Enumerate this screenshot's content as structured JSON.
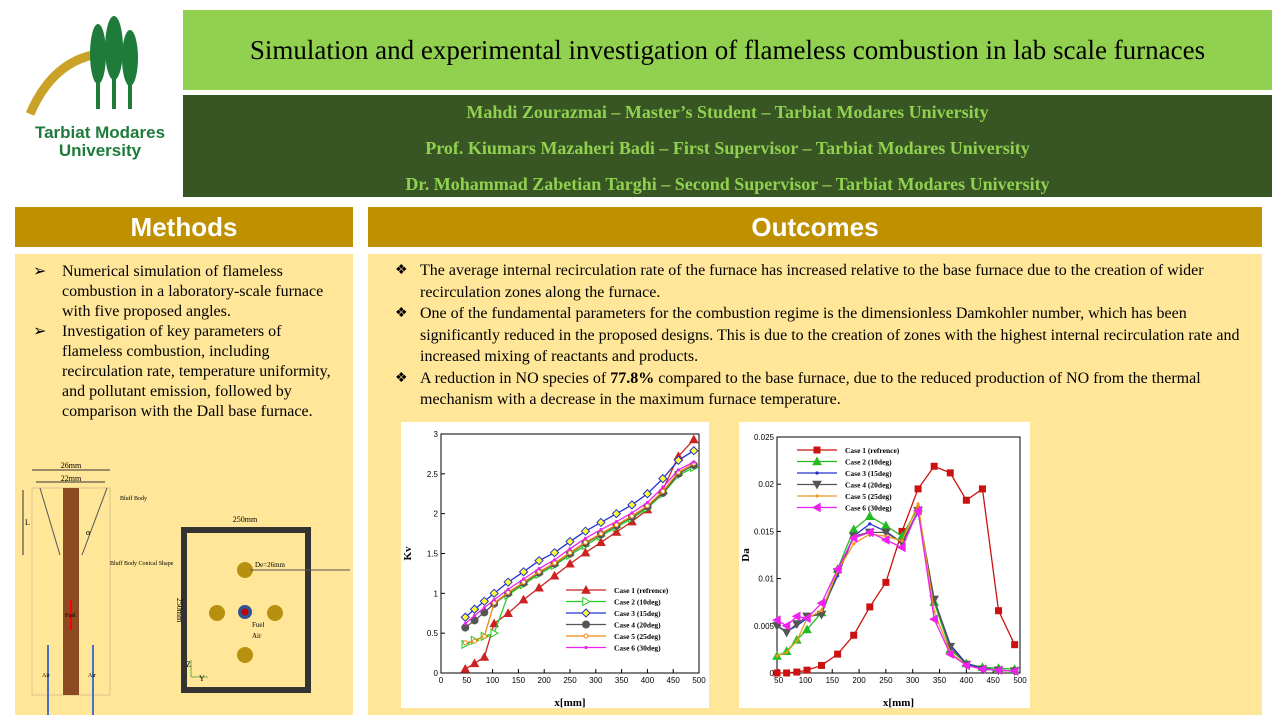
{
  "logo": {
    "text_line1": "Tarbiat Modares",
    "text_line2": "University",
    "colors": {
      "gold": "#C9A227",
      "green": "#1E7B3A"
    }
  },
  "title": "Simulation and experimental investigation of flameless combustion in lab scale furnaces",
  "authors": [
    "Mahdi Zourazmai – Master’s Student – Tarbiat Modares University",
    "Prof. Kiumars Mazaheri Badi – First Supervisor – Tarbiat Modares University",
    "Dr. Mohammad Zabetian Targhi – Second Supervisor – Tarbiat Modares University"
  ],
  "methods": {
    "heading": "Methods",
    "items": [
      "Numerical simulation of flameless combustion in a laboratory-scale furnace with five proposed angles.",
      "Investigation of key parameters of flameless combustion, including recirculation rate, temperature uniformity, and pollutant emission, followed by comparison with the Dall base furnace."
    ]
  },
  "diagram": {
    "dim_outer": "26mm",
    "dim_inner": "22mm",
    "label_L": "L",
    "label_alpha": "α",
    "bluff_body": "Bluff Body",
    "bluff_conical": "Bluff Body Conical Shape",
    "fuel": "Fuel",
    "air": "Air",
    "box_width": "250mm",
    "box_height": "250mm",
    "de": "De=26mm",
    "fuel_label": "Fuel",
    "air_label": "Air",
    "axis_z": "Z",
    "axis_y": "Y"
  },
  "outcomes": {
    "heading": "Outcomes",
    "items": [
      {
        "text": "The average internal recirculation rate of the furnace has increased relative to the base furnace due to the creation of wider recirculation zones along the furnace."
      },
      {
        "text": "One of the fundamental parameters for the combustion regime is the dimensionless Damkohler number, which has been significantly reduced in the proposed designs. This is due to the creation of zones with the highest internal recirculation rate and increased mixing of reactants and products."
      },
      {
        "pre": "A reduction in NO species of ",
        "bold": "77.8%",
        "post": " compared to the base furnace, due to the reduced production of NO from the thermal mechanism with a decrease in the maximum furnace temperature."
      }
    ]
  },
  "chart_data": [
    {
      "type": "line",
      "xlabel": "x[mm]",
      "ylabel": "Kv",
      "xlim": [
        0,
        500
      ],
      "ylim": [
        0,
        3
      ],
      "xticks": [
        0,
        50,
        100,
        150,
        200,
        250,
        300,
        350,
        400,
        450,
        500
      ],
      "yticks": [
        0,
        0.5,
        1,
        1.5,
        2,
        2.5,
        3
      ],
      "legend": "bottom-right",
      "x": [
        47,
        65,
        84,
        103,
        130,
        160,
        190,
        220,
        250,
        280,
        310,
        340,
        370,
        400,
        430,
        460,
        490
      ],
      "series": [
        {
          "name": "Case 1 (refrence)",
          "color": "#CC2222",
          "marker": "triangle",
          "values": [
            0.05,
            0.12,
            0.2,
            0.62,
            0.75,
            0.92,
            1.07,
            1.22,
            1.37,
            1.51,
            1.64,
            1.77,
            1.9,
            2.05,
            2.3,
            2.72,
            2.93
          ]
        },
        {
          "name": "Case 2 (10deg)",
          "color": "#22CC22",
          "marker": "triangle-right",
          "values": [
            0.36,
            0.41,
            0.46,
            0.5,
            0.98,
            1.11,
            1.24,
            1.35,
            1.48,
            1.6,
            1.72,
            1.83,
            1.94,
            2.07,
            2.25,
            2.48,
            2.58
          ]
        },
        {
          "name": "Case 3 (15deg)",
          "color": "#2233CC",
          "marker": "diamond",
          "values": [
            0.7,
            0.8,
            0.9,
            1.0,
            1.14,
            1.27,
            1.41,
            1.51,
            1.65,
            1.78,
            1.89,
            2.0,
            2.11,
            2.25,
            2.44,
            2.67,
            2.79
          ]
        },
        {
          "name": "Case 4 (20deg)",
          "color": "#555555",
          "marker": "circle",
          "values": [
            0.57,
            0.66,
            0.76,
            0.87,
            1.0,
            1.13,
            1.26,
            1.37,
            1.5,
            1.63,
            1.74,
            1.85,
            1.96,
            2.09,
            2.26,
            2.5,
            2.61
          ]
        },
        {
          "name": "Case 5 (25deg)",
          "color": "#EE8811",
          "marker": "small-circle",
          "values": [
            0.38,
            0.4,
            0.46,
            0.88,
            1.01,
            1.14,
            1.27,
            1.38,
            1.51,
            1.64,
            1.75,
            1.86,
            1.97,
            2.1,
            2.28,
            2.52,
            2.63
          ]
        },
        {
          "name": "Case 6 (30deg)",
          "color": "#EE22EE",
          "marker": "dot",
          "values": [
            0.62,
            0.72,
            0.82,
            0.92,
            1.05,
            1.18,
            1.31,
            1.42,
            1.56,
            1.69,
            1.8,
            1.9,
            2.01,
            2.14,
            2.33,
            2.55,
            2.65
          ]
        }
      ]
    },
    {
      "type": "line",
      "xlabel": "x[mm]",
      "ylabel": "Da",
      "xlim": [
        47,
        500
      ],
      "ylim": [
        0,
        0.025
      ],
      "xticks": [
        50,
        100,
        150,
        200,
        250,
        300,
        350,
        400,
        450,
        500
      ],
      "yticks": [
        0,
        0.005,
        0.01,
        0.015,
        0.02,
        0.025
      ],
      "legend": "top-left",
      "x": [
        47,
        65,
        84,
        103,
        130,
        160,
        190,
        220,
        250,
        280,
        310,
        340,
        370,
        400,
        430,
        460,
        490
      ],
      "series": [
        {
          "name": "Case 1 (refrence)",
          "color": "#CC1111",
          "marker": "square",
          "values": [
            0,
            0,
            0.0001,
            0.0003,
            0.0008,
            0.002,
            0.004,
            0.007,
            0.0096,
            0.015,
            0.0195,
            0.0219,
            0.0212,
            0.0183,
            0.0195,
            0.0066,
            0.003
          ]
        },
        {
          "name": "Case 2 (10deg)",
          "color": "#22BB22",
          "marker": "triangle",
          "values": [
            0.0018,
            0.0023,
            0.0035,
            0.0046,
            0.0064,
            0.011,
            0.0152,
            0.0166,
            0.0156,
            0.0145,
            0.0175,
            0.0075,
            0.0025,
            0.001,
            0.0006,
            0.0005,
            0.0004
          ]
        },
        {
          "name": "Case 3 (15deg)",
          "color": "#2233CC",
          "marker": "dot",
          "values": [
            0.005,
            0.0044,
            0.005,
            0.0058,
            0.0065,
            0.0103,
            0.0145,
            0.0158,
            0.015,
            0.0138,
            0.017,
            0.0078,
            0.003,
            0.001,
            0.0005,
            0.0003,
            0.0002
          ]
        },
        {
          "name": "Case 4 (20deg)",
          "color": "#555555",
          "marker": "triangle-down",
          "values": [
            0.005,
            0.0043,
            0.0052,
            0.006,
            0.0062,
            0.0107,
            0.0145,
            0.0149,
            0.0149,
            0.0138,
            0.0172,
            0.0078,
            0.0028,
            0.0009,
            0.0004,
            0.0003,
            0.0002
          ]
        },
        {
          "name": "Case 5 (25deg)",
          "color": "#EE9922",
          "marker": "dot",
          "values": [
            0.0018,
            0.0022,
            0.0034,
            0.0058,
            0.0066,
            0.0108,
            0.0137,
            0.0147,
            0.0145,
            0.014,
            0.0179,
            0.0065,
            0.0022,
            0.0008,
            0.0004,
            0.0003,
            0.0002
          ]
        },
        {
          "name": "Case 6 (30deg)",
          "color": "#EE22EE",
          "marker": "triangle-left",
          "values": [
            0.0056,
            0.005,
            0.006,
            0.0058,
            0.0074,
            0.011,
            0.0143,
            0.0149,
            0.0141,
            0.0133,
            0.0172,
            0.0057,
            0.002,
            0.0008,
            0.0004,
            0.0003,
            0.0002
          ]
        }
      ]
    }
  ]
}
